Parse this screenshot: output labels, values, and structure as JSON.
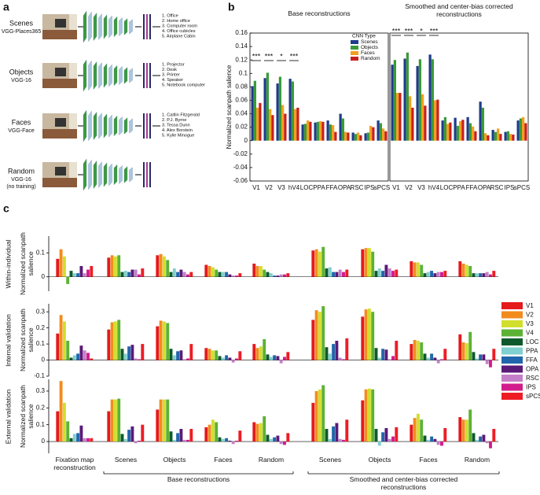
{
  "panel_labels": {
    "a": "a",
    "b": "b",
    "c": "c"
  },
  "diagram": {
    "rows": [
      {
        "name": "Scenes",
        "model": "VGG-Places365",
        "outputs": [
          "1. Office",
          "2. Home office",
          "3. Computer room",
          "4. Office cubicles",
          "5. Airplane Cabin"
        ]
      },
      {
        "name": "Objects",
        "model": "VGG-16",
        "outputs": [
          "1. Projector",
          "2. Desk",
          "3. Printer",
          "4. Speaker",
          "5. Notebook computer"
        ]
      },
      {
        "name": "Faces",
        "model": "VGG-Face",
        "outputs": [
          "1. Caitlin Fitzgerald",
          "2. P.J. Byrne",
          "3. Tessa Dunn",
          "4. Alex Borstein",
          "5. Kylie Minogue"
        ]
      },
      {
        "name": "Random",
        "model": "VGG-16",
        "note": "(no training)",
        "outputs": []
      }
    ]
  },
  "chart_data": [
    {
      "type": "bar",
      "title": "Base reconstructions",
      "ylabel": "Normalized scanpath salience",
      "categories": [
        "V1",
        "V2",
        "V3",
        "hV4",
        "LOC",
        "PPA",
        "FFA",
        "OPA",
        "RSC",
        "IPS",
        "sPCS"
      ],
      "ylim": [
        -0.06,
        0.16
      ],
      "yticks": [
        -0.06,
        -0.04,
        -0.02,
        0,
        0.02,
        0.04,
        0.06,
        0.08,
        0.1,
        0.12,
        0.14,
        0.16
      ],
      "legend": {
        "title": "CNN Type",
        "position": "upper right"
      },
      "annotations": [
        {
          "text": "***",
          "category": "V1"
        },
        {
          "text": "***",
          "category": "V2"
        },
        {
          "text": "*",
          "category": "V3"
        },
        {
          "text": "***",
          "category": "hV4"
        }
      ],
      "series": [
        {
          "name": "Scenes",
          "color": "#1f3b8c",
          "values": [
            0.081,
            0.093,
            0.085,
            0.092,
            0.024,
            0.027,
            0.03,
            0.04,
            0.012,
            0.011,
            0.03
          ]
        },
        {
          "name": "Objects",
          "color": "#3a9a3a",
          "values": [
            0.089,
            0.101,
            0.095,
            0.088,
            0.025,
            0.028,
            0.024,
            0.033,
            0.01,
            0.012,
            0.026
          ]
        },
        {
          "name": "Faces",
          "color": "#f2a01f",
          "values": [
            0.049,
            0.047,
            0.053,
            0.047,
            0.03,
            0.029,
            0.023,
            0.013,
            0.012,
            0.022,
            0.018
          ]
        },
        {
          "name": "Random",
          "color": "#c7201d",
          "values": [
            0.056,
            0.038,
            0.04,
            0.049,
            0.028,
            0.028,
            0.013,
            0.012,
            0.008,
            0.02,
            0.014
          ]
        }
      ]
    },
    {
      "type": "bar",
      "title": "Smoothed and center-bias corrected reconstructions",
      "categories": [
        "V1",
        "V2",
        "V3",
        "hV4",
        "LOC",
        "PPA",
        "FFA",
        "OPA",
        "RSC",
        "IPS",
        "sPCS"
      ],
      "ylim": [
        -0.06,
        0.16
      ],
      "annotations": [
        {
          "text": "***",
          "category": "V1"
        },
        {
          "text": "***",
          "category": "V2"
        },
        {
          "text": "*",
          "category": "V3"
        },
        {
          "text": "***",
          "category": "hV4"
        }
      ],
      "series": [
        {
          "color": "#1f3b8c",
          "values": [
            0.113,
            0.122,
            0.111,
            0.128,
            0.03,
            0.034,
            0.035,
            0.058,
            0.016,
            0.013,
            0.03
          ]
        },
        {
          "color": "#3a9a3a",
          "values": [
            0.12,
            0.131,
            0.121,
            0.121,
            0.035,
            0.022,
            0.026,
            0.049,
            0.013,
            0.014,
            0.033
          ]
        },
        {
          "color": "#f2a01f",
          "values": [
            0.071,
            0.066,
            0.069,
            0.06,
            0.025,
            0.029,
            0.021,
            0.011,
            0.018,
            0.01,
            0.035
          ]
        },
        {
          "color": "#c7201d",
          "values": [
            0.071,
            0.049,
            0.052,
            0.061,
            0.027,
            0.031,
            0.014,
            0.008,
            0.01,
            0.009,
            0.026
          ]
        }
      ]
    },
    {
      "type": "bar",
      "row_label": "Within-individual",
      "ylabel": "Normalized scanpath salience",
      "ylim": [
        -0.06,
        0.17
      ],
      "yticks": [
        0,
        0.1
      ],
      "series": [
        {
          "color": "#e41a1c",
          "values": [
            0.075,
            0.08,
            0.09,
            0.05,
            0.055,
            0.11,
            0.115,
            0.065,
            0.065
          ]
        },
        {
          "color": "#f28c1e",
          "values": [
            0.115,
            0.09,
            0.095,
            0.045,
            0.045,
            0.115,
            0.12,
            0.06,
            0.055
          ]
        },
        {
          "color": "#d2de2c",
          "values": [
            0.085,
            0.085,
            0.085,
            0.04,
            0.045,
            0.105,
            0.12,
            0.06,
            0.05
          ]
        },
        {
          "color": "#5cb234",
          "values": [
            -0.03,
            0.09,
            0.07,
            0.03,
            0.03,
            0.125,
            0.105,
            0.05,
            0.045
          ]
        },
        {
          "color": "#0e5a2c",
          "values": [
            0.025,
            0.02,
            0.02,
            0.02,
            0.02,
            0.035,
            0.025,
            0.015,
            0.015
          ]
        },
        {
          "color": "#80d0d0",
          "values": [
            0.015,
            0.025,
            0.035,
            0.02,
            0.015,
            0.04,
            0.035,
            0.02,
            0.015
          ]
        },
        {
          "color": "#2166ac",
          "values": [
            0.015,
            0.02,
            0.02,
            0.02,
            0.005,
            0.02,
            0.025,
            0.025,
            0.015
          ]
        },
        {
          "color": "#5a1a78",
          "values": [
            0.045,
            0.03,
            0.03,
            0.01,
            0.005,
            0.02,
            0.05,
            0.015,
            0.015
          ]
        },
        {
          "color": "#c47fc8",
          "values": [
            0.015,
            0.03,
            0.02,
            0.005,
            0.01,
            0.03,
            0.035,
            0.02,
            0.02
          ]
        },
        {
          "color": "#d21c8c",
          "values": [
            0.03,
            0.01,
            0.01,
            0.005,
            0.01,
            0.02,
            0.025,
            0.02,
            0.01
          ]
        },
        {
          "color": "#ee1c25",
          "values": [
            0.045,
            0.035,
            0.02,
            0.015,
            0.015,
            0.03,
            0.03,
            0.025,
            0.025
          ]
        }
      ]
    },
    {
      "type": "bar",
      "row_label": "Internal validation",
      "ylabel": "Normalized scanpath salience",
      "ylim": [
        -0.1,
        0.35
      ],
      "yticks": [
        -0.1,
        0,
        0.1,
        0.2,
        0.3
      ],
      "series": [
        {
          "name": "V1",
          "color": "#e41a1c",
          "values": [
            0.165,
            0.19,
            0.21,
            0.075,
            0.1,
            0.25,
            0.27,
            0.1,
            0.16
          ]
        },
        {
          "name": "V2",
          "color": "#f28c1e",
          "values": [
            0.28,
            0.235,
            0.245,
            0.07,
            0.075,
            0.31,
            0.315,
            0.125,
            0.11
          ]
        },
        {
          "name": "V3",
          "color": "#d2de2c",
          "values": [
            0.24,
            0.24,
            0.24,
            0.06,
            0.085,
            0.3,
            0.32,
            0.12,
            0.105
          ]
        },
        {
          "name": "V4",
          "color": "#5cb234",
          "values": [
            0.12,
            0.25,
            0.23,
            0.06,
            0.13,
            0.335,
            0.3,
            0.11,
            0.175
          ]
        },
        {
          "name": "LOC",
          "color": "#0e5a2c",
          "values": [
            0.015,
            0.07,
            0.07,
            0.025,
            0.035,
            0.08,
            0.075,
            0.04,
            0.05
          ]
        },
        {
          "name": "PPA",
          "color": "#80d0d0",
          "values": [
            0.03,
            0.04,
            0.03,
            0.015,
            0.02,
            0.04,
            0.015,
            0.015,
            0.01
          ]
        },
        {
          "name": "FFA",
          "color": "#2166ac",
          "values": [
            0.04,
            0.085,
            0.055,
            0.03,
            0.03,
            0.1,
            0.07,
            0.04,
            0.035
          ]
        },
        {
          "name": "OPA",
          "color": "#5a1a78",
          "values": [
            0.09,
            0.095,
            0.06,
            0.015,
            0.025,
            0.12,
            0.065,
            0.015,
            0.035
          ]
        },
        {
          "name": "RSC",
          "color": "#c47fc8",
          "values": [
            0.06,
            0.01,
            0.005,
            -0.015,
            -0.02,
            0.015,
            0.005,
            -0.02,
            -0.025
          ]
        },
        {
          "name": "IPS",
          "color": "#d21c8c",
          "values": [
            0.045,
            0.005,
            0.01,
            0.01,
            0.02,
            0.005,
            0.025,
            0.005,
            -0.045
          ]
        },
        {
          "name": "sPCS",
          "color": "#ee1c25",
          "values": [
            0.01,
            0.1,
            0.1,
            0.055,
            0.05,
            0.135,
            0.12,
            0.07,
            0.07
          ]
        }
      ]
    },
    {
      "type": "bar",
      "row_label": "External validation",
      "ylabel": "Normalized scanpath salience",
      "ylim": [
        -0.07,
        0.37
      ],
      "yticks": [
        0,
        0.1,
        0.2,
        0.3
      ],
      "categories": [
        "Fixation map reconstruction",
        "Scenes",
        "Objects",
        "Faces",
        "Random",
        "Scenes",
        "Objects",
        "Faces",
        "Random"
      ],
      "brackets": [
        {
          "label": "Base reconstructions"
        },
        {
          "label": "Smoothed and center-bias corrected reconstructions"
        }
      ],
      "series": [
        {
          "color": "#e41a1c",
          "values": [
            0.18,
            0.18,
            0.19,
            0.085,
            0.115,
            0.23,
            0.245,
            0.1,
            0.145
          ]
        },
        {
          "color": "#f28c1e",
          "values": [
            0.36,
            0.25,
            0.25,
            0.1,
            0.105,
            0.3,
            0.31,
            0.14,
            0.13
          ]
        },
        {
          "color": "#d2de2c",
          "values": [
            0.23,
            0.25,
            0.25,
            0.13,
            0.11,
            0.31,
            0.315,
            0.165,
            0.13
          ]
        },
        {
          "color": "#5cb234",
          "values": [
            0.12,
            0.255,
            0.25,
            0.115,
            0.15,
            0.335,
            0.31,
            0.13,
            0.19
          ]
        },
        {
          "color": "#0e5a2c",
          "values": [
            0.02,
            0.045,
            0.06,
            0.025,
            0.04,
            0.075,
            0.075,
            0.035,
            0.05
          ]
        },
        {
          "color": "#80d0d0",
          "values": [
            0.045,
            0.015,
            0.01,
            0.015,
            0.015,
            0.015,
            -0.025,
            0.01,
            0.01
          ]
        },
        {
          "color": "#2166ac",
          "values": [
            0.05,
            0.07,
            0.05,
            0.02,
            0.025,
            0.09,
            0.055,
            0.03,
            0.03
          ]
        },
        {
          "color": "#5a1a78",
          "values": [
            0.095,
            0.09,
            0.075,
            0.005,
            0.035,
            0.11,
            0.08,
            0.015,
            0.04
          ]
        },
        {
          "color": "#c47fc8",
          "values": [
            0.02,
            -0.01,
            0.01,
            -0.015,
            -0.015,
            0.015,
            0.015,
            -0.02,
            -0.01
          ]
        },
        {
          "color": "#d21c8c",
          "values": [
            0.02,
            0.005,
            0.01,
            0.005,
            -0.02,
            0.01,
            0.03,
            -0.025,
            -0.04
          ]
        },
        {
          "color": "#ee1c25",
          "values": [
            0.02,
            0.1,
            0.075,
            0.065,
            0.05,
            0.13,
            0.085,
            0.08,
            0.075
          ]
        }
      ]
    }
  ]
}
